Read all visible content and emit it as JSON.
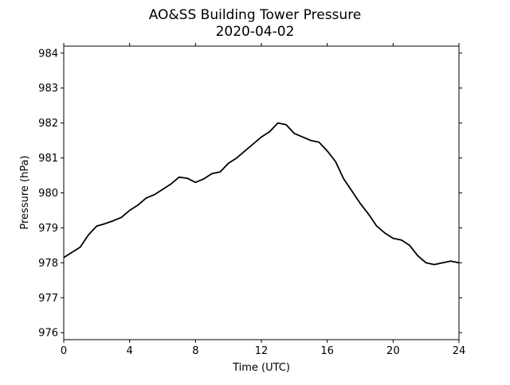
{
  "chart_data": {
    "type": "line",
    "title": "AO&SS Building Tower Pressure",
    "subtitle": "2020-04-02",
    "xlabel": "Time (UTC)",
    "ylabel": "Pressure (hPa)",
    "xlim": [
      0,
      24
    ],
    "ylim": [
      975.8,
      984.2
    ],
    "xticks": [
      0,
      4,
      8,
      12,
      16,
      20,
      24
    ],
    "yticks": [
      976,
      977,
      978,
      979,
      980,
      981,
      982,
      983,
      984
    ],
    "grid": false,
    "line_color": "#000000",
    "series": [
      {
        "name": "",
        "x": [
          0,
          0.5,
          1,
          1.5,
          2,
          2.5,
          3,
          3.5,
          4,
          4.5,
          5,
          5.5,
          6,
          6.5,
          7,
          7.5,
          8,
          8.5,
          9,
          9.5,
          10,
          10.5,
          11,
          11.5,
          12,
          12.5,
          13,
          13.5,
          14,
          14.5,
          15,
          15.5,
          16,
          16.5,
          17,
          17.5,
          18,
          18.5,
          19,
          19.5,
          20,
          20.5,
          21,
          21.5,
          22,
          22.5,
          23,
          23.5,
          24
        ],
        "y": [
          978.15,
          978.3,
          978.45,
          978.8,
          979.05,
          979.12,
          979.2,
          979.3,
          979.5,
          979.65,
          979.85,
          979.95,
          980.1,
          980.25,
          980.45,
          980.42,
          980.3,
          980.4,
          980.55,
          980.6,
          980.85,
          981.0,
          981.2,
          981.4,
          981.6,
          981.75,
          982.0,
          981.95,
          981.7,
          981.6,
          981.5,
          981.45,
          981.2,
          980.9,
          980.4,
          980.05,
          979.7,
          979.4,
          979.05,
          978.85,
          978.7,
          978.65,
          978.5,
          978.2,
          978.0,
          977.95,
          978.0,
          978.05,
          978.0
        ]
      }
    ]
  }
}
